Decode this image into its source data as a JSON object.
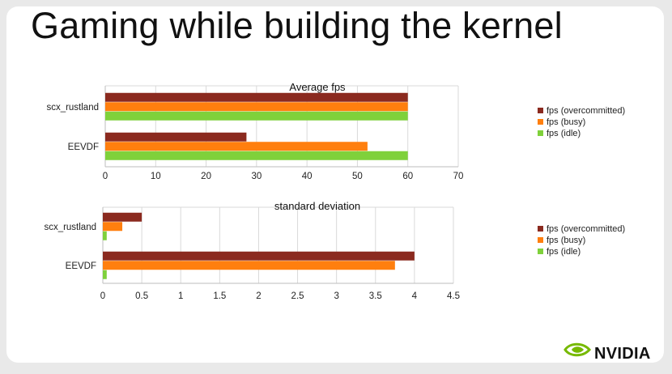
{
  "slide": {
    "title": "Gaming while building the kernel",
    "logo_text": "NVIDIA"
  },
  "colors": {
    "overcommitted": "#8b2a1f",
    "busy": "#ff7f0e",
    "idle": "#7fd13b",
    "grid": "#d9d9d9",
    "brand": "#76b900"
  },
  "chart_data": [
    {
      "type": "bar",
      "orientation": "horizontal",
      "title": "Average fps",
      "categories": [
        "scx_rustland",
        "EEVDF"
      ],
      "series": [
        {
          "name": "fps (overcommitted)",
          "values": [
            60,
            28
          ]
        },
        {
          "name": "fps (busy)",
          "values": [
            60,
            52
          ]
        },
        {
          "name": "fps (idle)",
          "values": [
            60,
            60
          ]
        }
      ],
      "xlim": [
        0,
        70
      ],
      "xticks": [
        "0",
        "10",
        "20",
        "30",
        "40",
        "50",
        "60",
        "70"
      ],
      "grid": true,
      "legend": "right"
    },
    {
      "type": "bar",
      "orientation": "horizontal",
      "title": "standard deviation",
      "categories": [
        "scx_rustland",
        "EEVDF"
      ],
      "series": [
        {
          "name": "fps (overcommitted)",
          "values": [
            0.5,
            4
          ]
        },
        {
          "name": "fps (busy)",
          "values": [
            0.25,
            3.75
          ]
        },
        {
          "name": "fps (idle)",
          "values": [
            0.05,
            0.05
          ]
        }
      ],
      "xlim": [
        0,
        4.5
      ],
      "xticks": [
        "0",
        "0.5",
        "1",
        "1.5",
        "2",
        "2.5",
        "3",
        "3.5",
        "4",
        "4.5"
      ],
      "grid": true,
      "legend": "right"
    }
  ]
}
